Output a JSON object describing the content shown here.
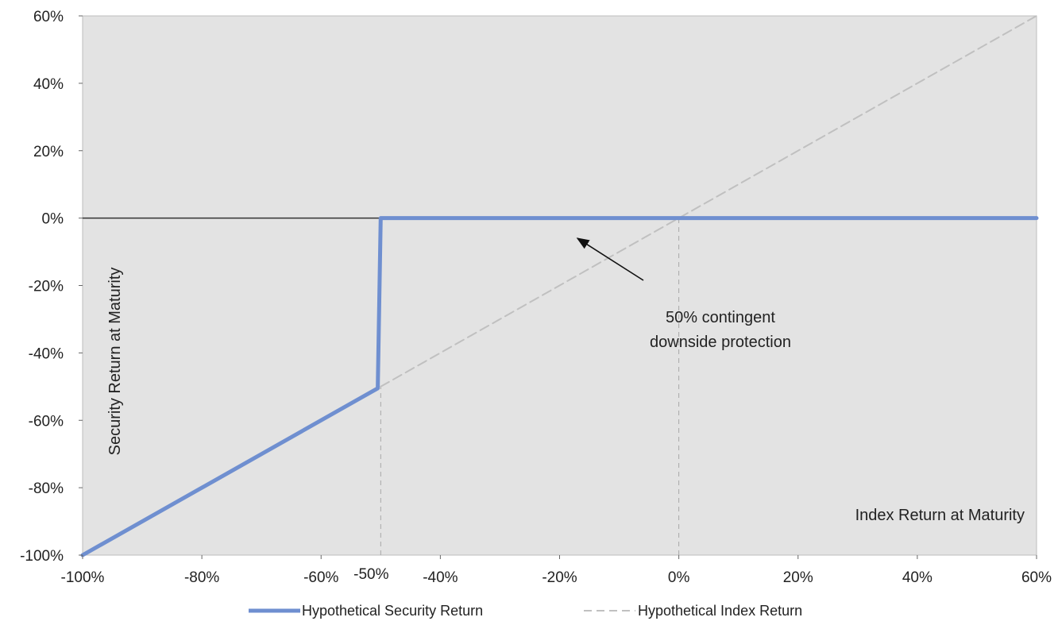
{
  "chart_data": {
    "type": "line",
    "xlabel": "Index Return at Maturity",
    "ylabel": "Security Return at Maturity",
    "xlim": [
      -100,
      60
    ],
    "ylim": [
      -100,
      60
    ],
    "x_ticks": [
      "-100%",
      "-80%",
      "-60%",
      "-40%",
      "-20%",
      "0%",
      "20%",
      "40%",
      "60%"
    ],
    "x_tick_values": [
      -100,
      -80,
      -60,
      -40,
      -20,
      0,
      20,
      40,
      60
    ],
    "y_ticks": [
      "60%",
      "40%",
      "20%",
      "0%",
      "-20%",
      "-40%",
      "-60%",
      "-80%",
      "-100%"
    ],
    "y_tick_values": [
      60,
      40,
      20,
      0,
      -20,
      -40,
      -60,
      -80,
      -100
    ],
    "extra_x_label": {
      "text": "-50%",
      "value": -50
    },
    "grid": false,
    "legend_position": "bottom",
    "series": [
      {
        "name": "Hypothetical Security Return",
        "color": "#6f8fd0",
        "style": "solid",
        "x": [
          -100,
          -50.5,
          -50,
          60
        ],
        "y": [
          -100,
          -50.5,
          0,
          0
        ]
      },
      {
        "name": "Hypothetical Index Return",
        "color": "#c0c0c0",
        "style": "dashed",
        "x": [
          -50,
          60
        ],
        "y": [
          -50,
          60
        ]
      }
    ],
    "reference_lines": [
      {
        "x": -50,
        "from_y": -100,
        "to_y": -50
      },
      {
        "x": 0,
        "from_y": -100,
        "to_y": 0
      }
    ],
    "annotations": [
      {
        "lines": [
          "50% contingent",
          "downside protection"
        ],
        "arrow_to": {
          "x": -17,
          "y": -6
        }
      }
    ],
    "colors": {
      "plot_bg": "#e3e3e3",
      "zero_line": "#333333"
    }
  }
}
